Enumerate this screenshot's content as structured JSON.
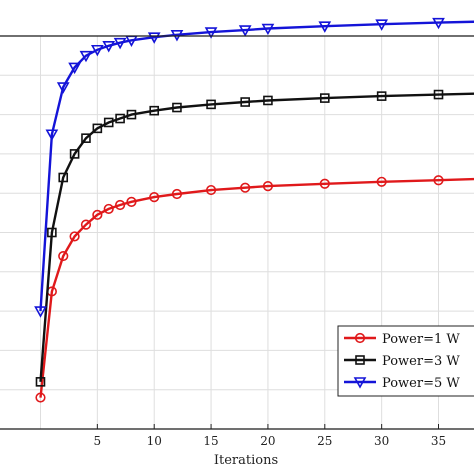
{
  "chart_data": {
    "type": "line",
    "title": "",
    "xlabel": "Iterations",
    "ylabel": "",
    "xlim": [
      -4,
      39
    ],
    "ylim": [
      0,
      1
    ],
    "x_ticks": [
      5,
      10,
      15,
      20,
      25,
      30,
      35
    ],
    "grid": true,
    "legend_position": "bottom-right",
    "series": [
      {
        "name": "Power=1 W",
        "color": "#e0191b",
        "marker": "circle",
        "x": [
          0,
          1,
          2,
          3,
          4,
          5,
          6,
          7,
          8,
          10,
          12,
          15,
          18,
          20,
          25,
          30,
          35,
          39
        ],
        "values": [
          0.08,
          0.35,
          0.44,
          0.49,
          0.52,
          0.545,
          0.56,
          0.57,
          0.578,
          0.59,
          0.598,
          0.608,
          0.614,
          0.618,
          0.624,
          0.629,
          0.633,
          0.637
        ]
      },
      {
        "name": "Power=3 W",
        "color": "#111111",
        "marker": "square",
        "x": [
          0,
          1,
          2,
          3,
          4,
          5,
          6,
          7,
          8,
          10,
          12,
          15,
          18,
          20,
          25,
          30,
          35,
          39
        ],
        "values": [
          0.12,
          0.5,
          0.64,
          0.7,
          0.74,
          0.765,
          0.78,
          0.79,
          0.8,
          0.81,
          0.818,
          0.826,
          0.832,
          0.836,
          0.842,
          0.847,
          0.851,
          0.854
        ]
      },
      {
        "name": "Power=5 W",
        "color": "#1414d8",
        "marker": "triangle-down",
        "x": [
          0,
          1,
          2,
          3,
          4,
          5,
          6,
          7,
          8,
          10,
          12,
          15,
          18,
          20,
          25,
          30,
          35,
          39
        ],
        "values": [
          0.3,
          0.75,
          0.87,
          0.92,
          0.95,
          0.965,
          0.975,
          0.983,
          0.989,
          0.997,
          1.003,
          1.01,
          1.015,
          1.019,
          1.025,
          1.03,
          1.034,
          1.037
        ]
      }
    ]
  }
}
